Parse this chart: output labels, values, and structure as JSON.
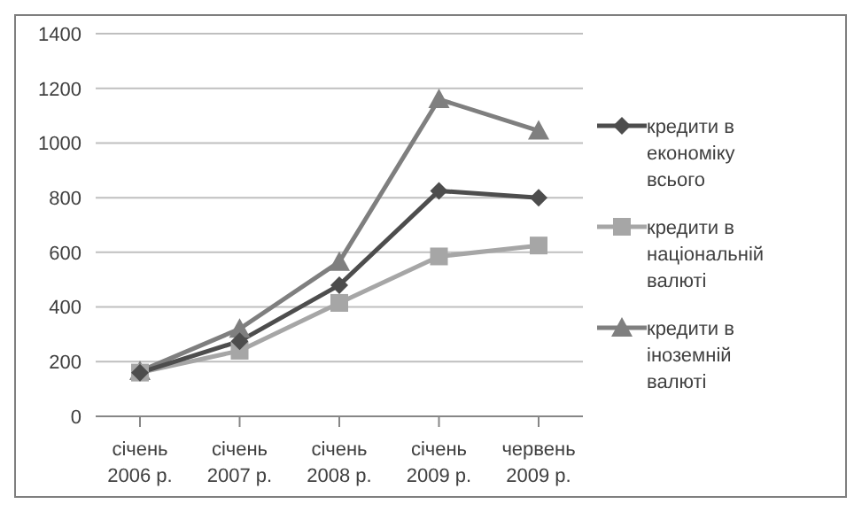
{
  "chart_data": {
    "type": "line",
    "categories": [
      "січень 2006 р.",
      "січень 2007 р.",
      "січень 2008 р.",
      "січень 2009 р.",
      "червень 2009 р."
    ],
    "series": [
      {
        "name": "кредити в економіку всього",
        "color": "#4d4d4d",
        "marker": "diamond",
        "values": [
          160,
          275,
          480,
          825,
          800
        ]
      },
      {
        "name": "кредити в національній валюті",
        "color": "#a6a6a6",
        "marker": "square",
        "values": [
          160,
          240,
          415,
          585,
          625
        ]
      },
      {
        "name": "кредити в іноземній валюті",
        "color": "#7f7f7f",
        "marker": "triangle",
        "values": [
          165,
          320,
          565,
          1160,
          1045
        ]
      }
    ],
    "ylim": [
      0,
      1400
    ],
    "yticks": [
      0,
      200,
      400,
      600,
      800,
      1000,
      1200,
      1400
    ],
    "grid": "y",
    "legend": "right"
  }
}
